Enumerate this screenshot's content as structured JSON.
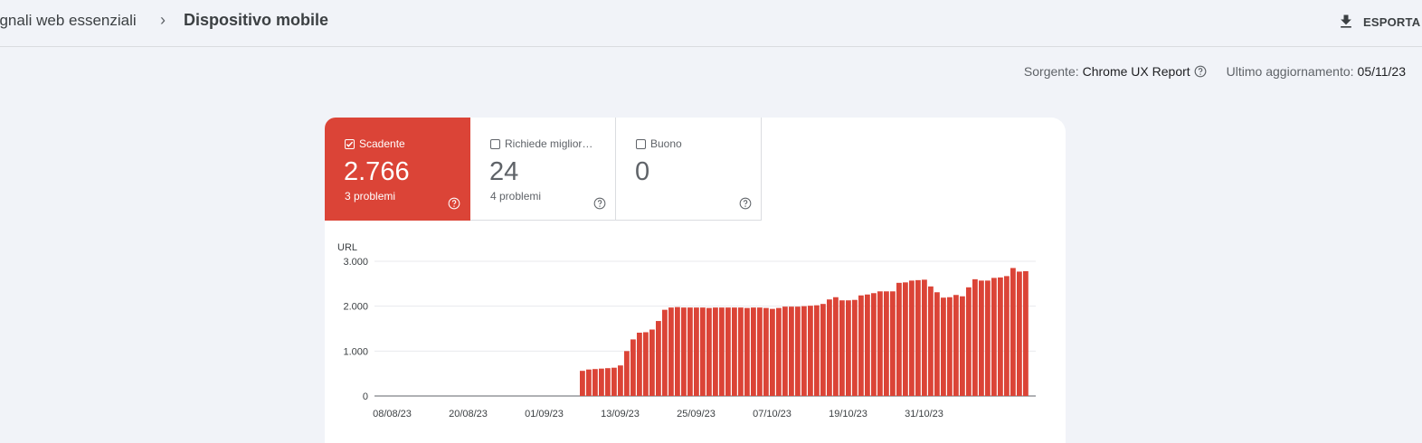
{
  "breadcrumb": {
    "parent": "egnali web essenziali",
    "separator": "›",
    "current": "Dispositivo mobile"
  },
  "toolbar": {
    "export_label": "ESPORTA",
    "export_icon": "download-icon"
  },
  "meta": {
    "source_label": "Sorgente:",
    "source_value": "Chrome UX Report",
    "updated_label": "Ultimo aggiornamento:",
    "updated_value": "05/11/23"
  },
  "tiles": [
    {
      "label": "Scadente",
      "value": "2.766",
      "sub": "3 problemi",
      "checked": true
    },
    {
      "label": "Richiede migliora…",
      "value": "24",
      "sub": "4 problemi",
      "checked": false
    },
    {
      "label": "Buono",
      "value": "0",
      "sub": "",
      "checked": false
    }
  ],
  "colors": {
    "poor": "#db4437",
    "grid": "#e8eaed",
    "axis": "#5f6368"
  },
  "chart_data": {
    "type": "bar",
    "ylabel": "URL",
    "ylim": [
      0,
      3000
    ],
    "yticks": [
      {
        "value": 0,
        "label": "0"
      },
      {
        "value": 1000,
        "label": "1.000"
      },
      {
        "value": 2000,
        "label": "2.000"
      },
      {
        "value": 3000,
        "label": "3.000"
      }
    ],
    "xticks": [
      "08/08/23",
      "20/08/23",
      "01/09/23",
      "13/09/23",
      "25/09/23",
      "07/10/23",
      "19/10/23",
      "31/10/23"
    ],
    "xrange": [
      "08/08/23",
      "05/11/23"
    ],
    "series": [
      {
        "values": [
          0,
          0,
          0,
          0,
          0,
          0,
          0,
          0,
          0,
          0,
          0,
          0,
          0,
          0,
          0,
          0,
          0,
          0,
          0,
          0,
          0,
          0,
          0,
          0,
          0,
          0,
          0,
          0,
          0,
          0,
          0,
          0,
          560,
          590,
          600,
          610,
          620,
          630,
          680,
          1000,
          1260,
          1410,
          1420,
          1480,
          1670,
          1920,
          1970,
          1980,
          1970,
          1970,
          1970,
          1970,
          1960,
          1970,
          1970,
          1970,
          1970,
          1970,
          1960,
          1970,
          1970,
          1960,
          1940,
          1960,
          1990,
          1990,
          1990,
          2000,
          2010,
          2020,
          2050,
          2150,
          2200,
          2130,
          2130,
          2140,
          2240,
          2260,
          2290,
          2330,
          2330,
          2330,
          2520,
          2530,
          2570,
          2580,
          2590,
          2440,
          2310,
          2190,
          2200,
          2250,
          2220,
          2420,
          2600,
          2570,
          2570,
          2630,
          2640,
          2670,
          2850,
          2770,
          2780
        ]
      }
    ]
  }
}
